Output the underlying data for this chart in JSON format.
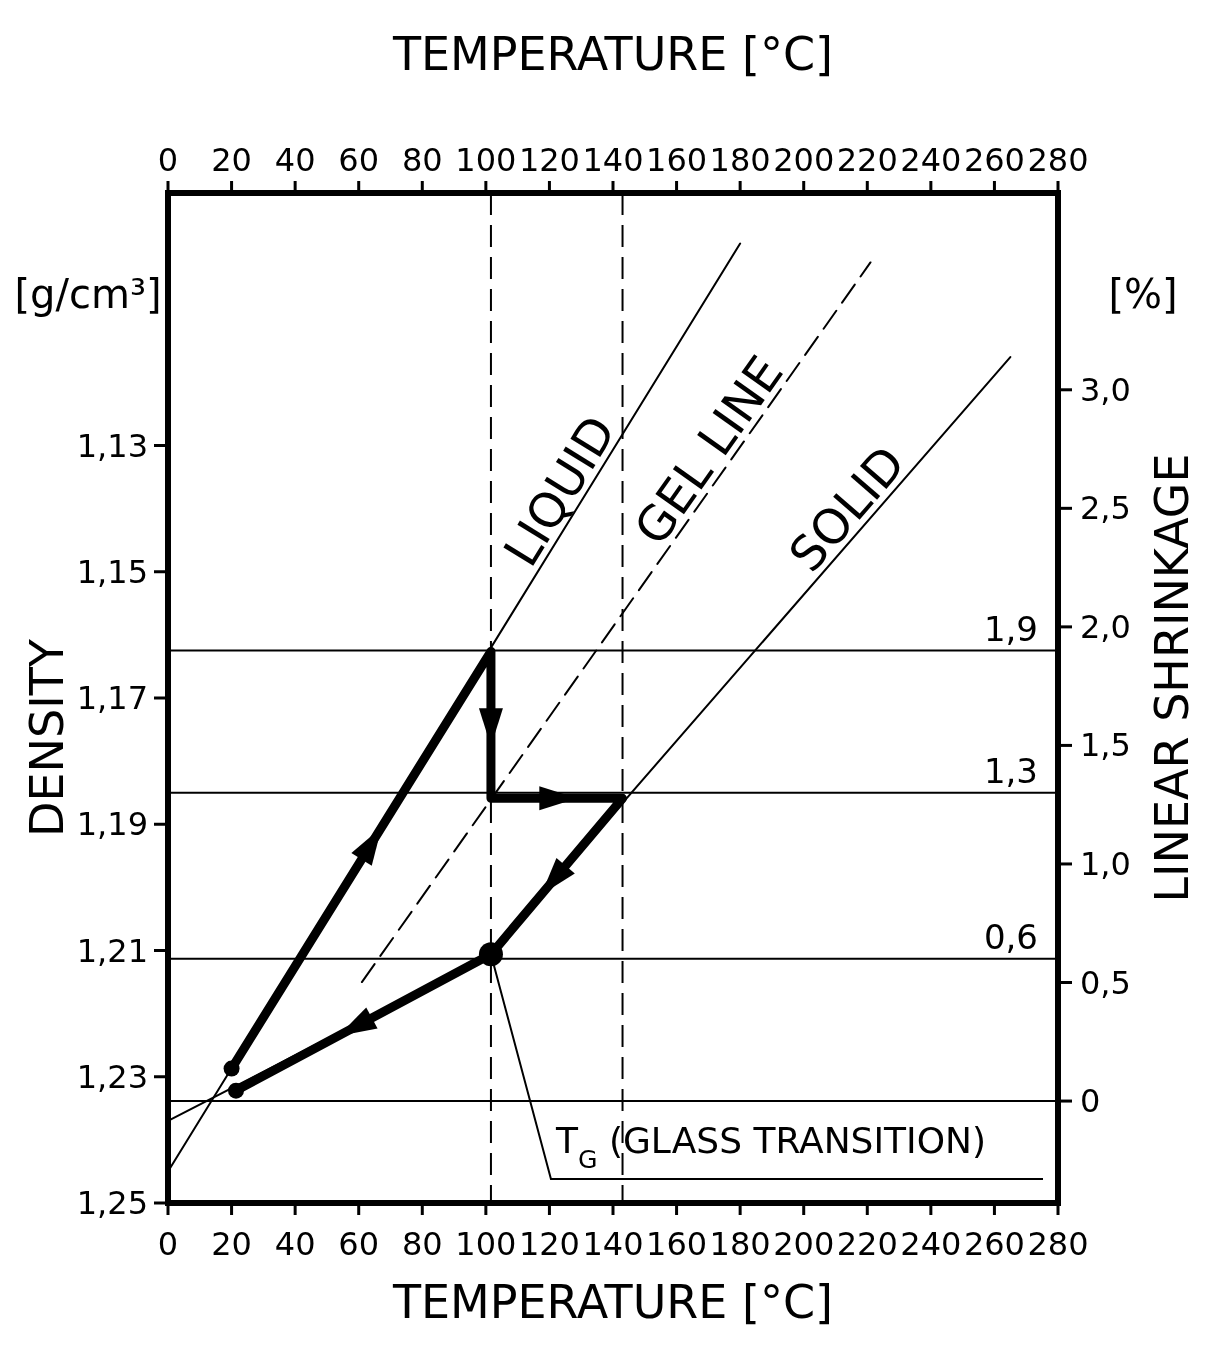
{
  "chart_data": {
    "type": "line",
    "xlabel": "TEMPERATURE [°C]",
    "x2label": "TEMPERATURE [°C]",
    "ylabel": "DENSITY",
    "y2label": "LINEAR SHRINKAGE",
    "xlim": [
      0,
      280
    ],
    "xticks": [
      0,
      20,
      40,
      60,
      80,
      100,
      120,
      140,
      160,
      180,
      200,
      220,
      240,
      260,
      280
    ],
    "x2lim": [
      0,
      280
    ],
    "x2ticks": [
      0,
      20,
      40,
      60,
      80,
      100,
      120,
      140,
      160,
      180,
      200,
      220,
      240,
      260,
      280
    ],
    "ylim": [
      1.25,
      1.09
    ],
    "yticks": [
      {
        "value": 1.13,
        "label": "1,13"
      },
      {
        "value": 1.15,
        "label": "1,15"
      },
      {
        "value": 1.17,
        "label": "1,17"
      },
      {
        "value": 1.19,
        "label": "1,19"
      },
      {
        "value": 1.21,
        "label": "1,21"
      },
      {
        "value": 1.23,
        "label": "1,23"
      },
      {
        "value": 1.25,
        "label": "1,25"
      }
    ],
    "y2lim": [
      -0.43,
      3.83
    ],
    "y2ticks": [
      0,
      {
        "value": 0.5,
        "label": "0,5"
      },
      {
        "value": 1.0,
        "label": "1,0"
      },
      {
        "value": 1.5,
        "label": "1,5"
      },
      {
        "value": 2.0,
        "label": "2,0"
      },
      {
        "value": 2.5,
        "label": "2,5"
      },
      {
        "value": 3.0,
        "label": "3,0"
      }
    ],
    "marker": "none",
    "series": [
      {
        "name": "LIQUID",
        "color": "#000000",
        "x": [
          0,
          180
        ],
        "values": [
          1.245,
          1.098
        ]
      },
      {
        "name": "GEL LINE",
        "color": "#000000",
        "line_style": "dashed",
        "x": [
          61,
          221
        ],
        "values": [
          1.215,
          1.101
        ]
      },
      {
        "name": "SOLID",
        "color": "#000000",
        "x": [
          0,
          101.6,
          265
        ],
        "values": [
          1.237,
          1.2106,
          1.116
        ]
      },
      {
        "color": "#000000",
        "x": [
          20,
          101.6,
          101.6,
          143,
          101.6,
          21.4
        ],
        "values": [
          1.2287,
          1.1626,
          1.1859,
          1.1859,
          1.2106,
          1.2322
        ]
      }
    ],
    "ref_lines": [
      {
        "axis": "y2",
        "value": 1.9,
        "label": "1,9"
      },
      {
        "axis": "y2",
        "value": 1.3,
        "label": "1,3"
      },
      {
        "axis": "y2",
        "value": 0.6,
        "label": "0,6"
      },
      {
        "axis": "y2",
        "value": 0,
        "label": null
      },
      {
        "axis": "x",
        "value": 101.6,
        "label": null,
        "line_style": "dashed"
      },
      {
        "axis": "x",
        "value": 143,
        "label": null,
        "line_style": "dashed"
      }
    ],
    "annotations": [
      "[g/cm³]",
      "[%]",
      {
        "text": "T$_{G}$ (GLASS TRANSITION)",
        "x": 101.6,
        "y": 1.2106
      }
    ]
  }
}
